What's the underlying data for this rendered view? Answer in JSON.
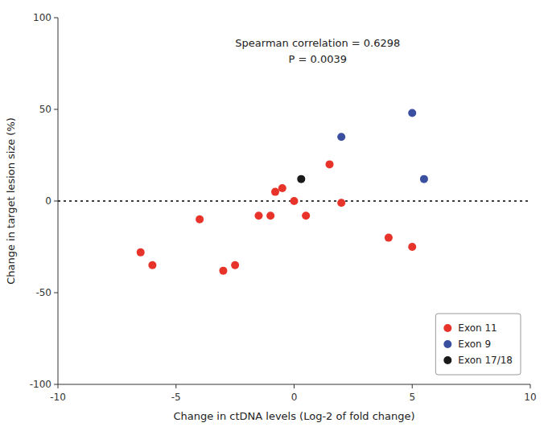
{
  "chart_data": {
    "type": "scatter",
    "xlabel": "Change in ctDNA levels (Log-2 of fold change)",
    "ylabel": "Change in target lesion size (%)",
    "annotations": [
      "Spearman correlation = 0.6298",
      "P = 0.0039"
    ],
    "series": [
      {
        "name": "Exon 11",
        "color": "#E8332A",
        "x": [
          -6.5,
          -6.0,
          -4.0,
          -3.0,
          -2.5,
          -1.5,
          -1.0,
          -0.8,
          -0.5,
          0.0,
          0.5,
          1.5,
          2.0,
          4.0,
          5.0
        ],
        "values": [
          -28,
          -35,
          -10,
          -38,
          -35,
          -8,
          -8,
          5,
          7,
          0,
          -8,
          20,
          -1,
          -20,
          -25
        ]
      },
      {
        "name": "Exon 9",
        "color": "#3B4FA0",
        "x": [
          2.0,
          5.0,
          5.5
        ],
        "values": [
          35,
          48,
          12
        ]
      },
      {
        "name": "Exon 17/18",
        "color": "#1A1A1A",
        "x": [
          0.3
        ],
        "values": [
          12
        ]
      }
    ],
    "reference_line": 0,
    "xlim": [
      -10,
      10
    ],
    "ylim": [
      -100,
      100
    ],
    "xticks": [
      -10,
      -5,
      0,
      5,
      10
    ],
    "yticks": [
      -100,
      -50,
      0,
      50,
      100
    ],
    "grid": false,
    "legend": "lower right"
  }
}
